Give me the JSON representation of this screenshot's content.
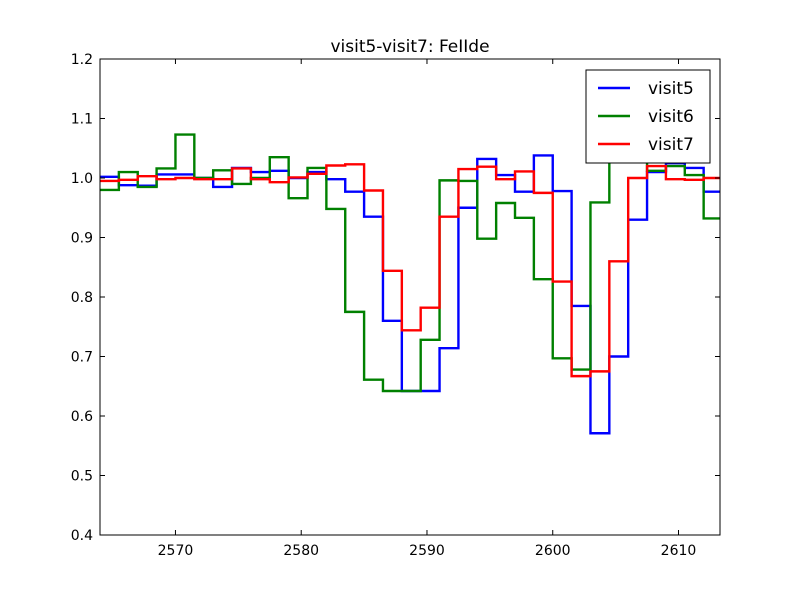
{
  "chart_data": {
    "type": "line",
    "step": true,
    "title": "visit5-visit7: FeIIde",
    "xlabel": "",
    "ylabel": "",
    "xlim": [
      2564,
      2613.3
    ],
    "ylim": [
      0.4,
      1.2
    ],
    "xticks": [
      2570,
      2580,
      2590,
      2600,
      2610
    ],
    "yticks": [
      0.4,
      0.5,
      0.6,
      0.7,
      0.8,
      0.9,
      1.0,
      1.1,
      1.2
    ],
    "grid": false,
    "legend_position": "top-right",
    "edges": [
      2564,
      2565.5,
      2567,
      2568.5,
      2570,
      2571.5,
      2573,
      2574.5,
      2576,
      2577.5,
      2579,
      2580.5,
      2582,
      2583.5,
      2585,
      2586.5,
      2588,
      2589.5,
      2591,
      2592.5,
      2594,
      2595.5,
      2597,
      2598.5,
      2600,
      2601.5,
      2603,
      2604.5,
      2606,
      2607.5,
      2609,
      2610.5,
      2612,
      2613.5
    ],
    "series": [
      {
        "name": "visit5",
        "color": "#0000ff",
        "values": [
          1.002,
          0.988,
          0.987,
          1.006,
          1.006,
          1.0,
          0.985,
          1.017,
          1.01,
          1.012,
          1.0,
          1.01,
          0.998,
          0.977,
          0.935,
          0.76,
          0.642,
          0.642,
          0.714,
          0.95,
          1.032,
          1.005,
          0.977,
          1.038,
          0.978,
          0.785,
          0.571,
          0.7,
          0.93,
          1.01,
          1.025,
          1.017,
          0.977,
          1.02
        ]
      },
      {
        "name": "visit6",
        "color": "#008000",
        "values": [
          0.98,
          1.01,
          0.985,
          1.016,
          1.073,
          1.0,
          1.013,
          0.99,
          1.0,
          1.035,
          0.966,
          1.017,
          0.948,
          0.775,
          0.661,
          0.642,
          0.642,
          0.728,
          0.996,
          0.995,
          0.898,
          0.958,
          0.933,
          0.83,
          0.697,
          0.678,
          0.959,
          1.178,
          1.178,
          1.012,
          1.02,
          1.005,
          0.932,
          1.005
        ]
      },
      {
        "name": "visit7",
        "color": "#ff0000",
        "values": [
          0.995,
          0.997,
          1.003,
          0.998,
          1.0,
          0.998,
          0.998,
          1.016,
          0.998,
          0.993,
          1.001,
          1.007,
          1.021,
          1.023,
          0.979,
          0.844,
          0.744,
          0.782,
          0.935,
          1.015,
          1.019,
          0.998,
          1.011,
          0.975,
          0.826,
          0.667,
          0.675,
          0.86,
          1.0,
          1.02,
          0.998,
          0.997,
          1.0,
          0.998
        ]
      }
    ]
  }
}
